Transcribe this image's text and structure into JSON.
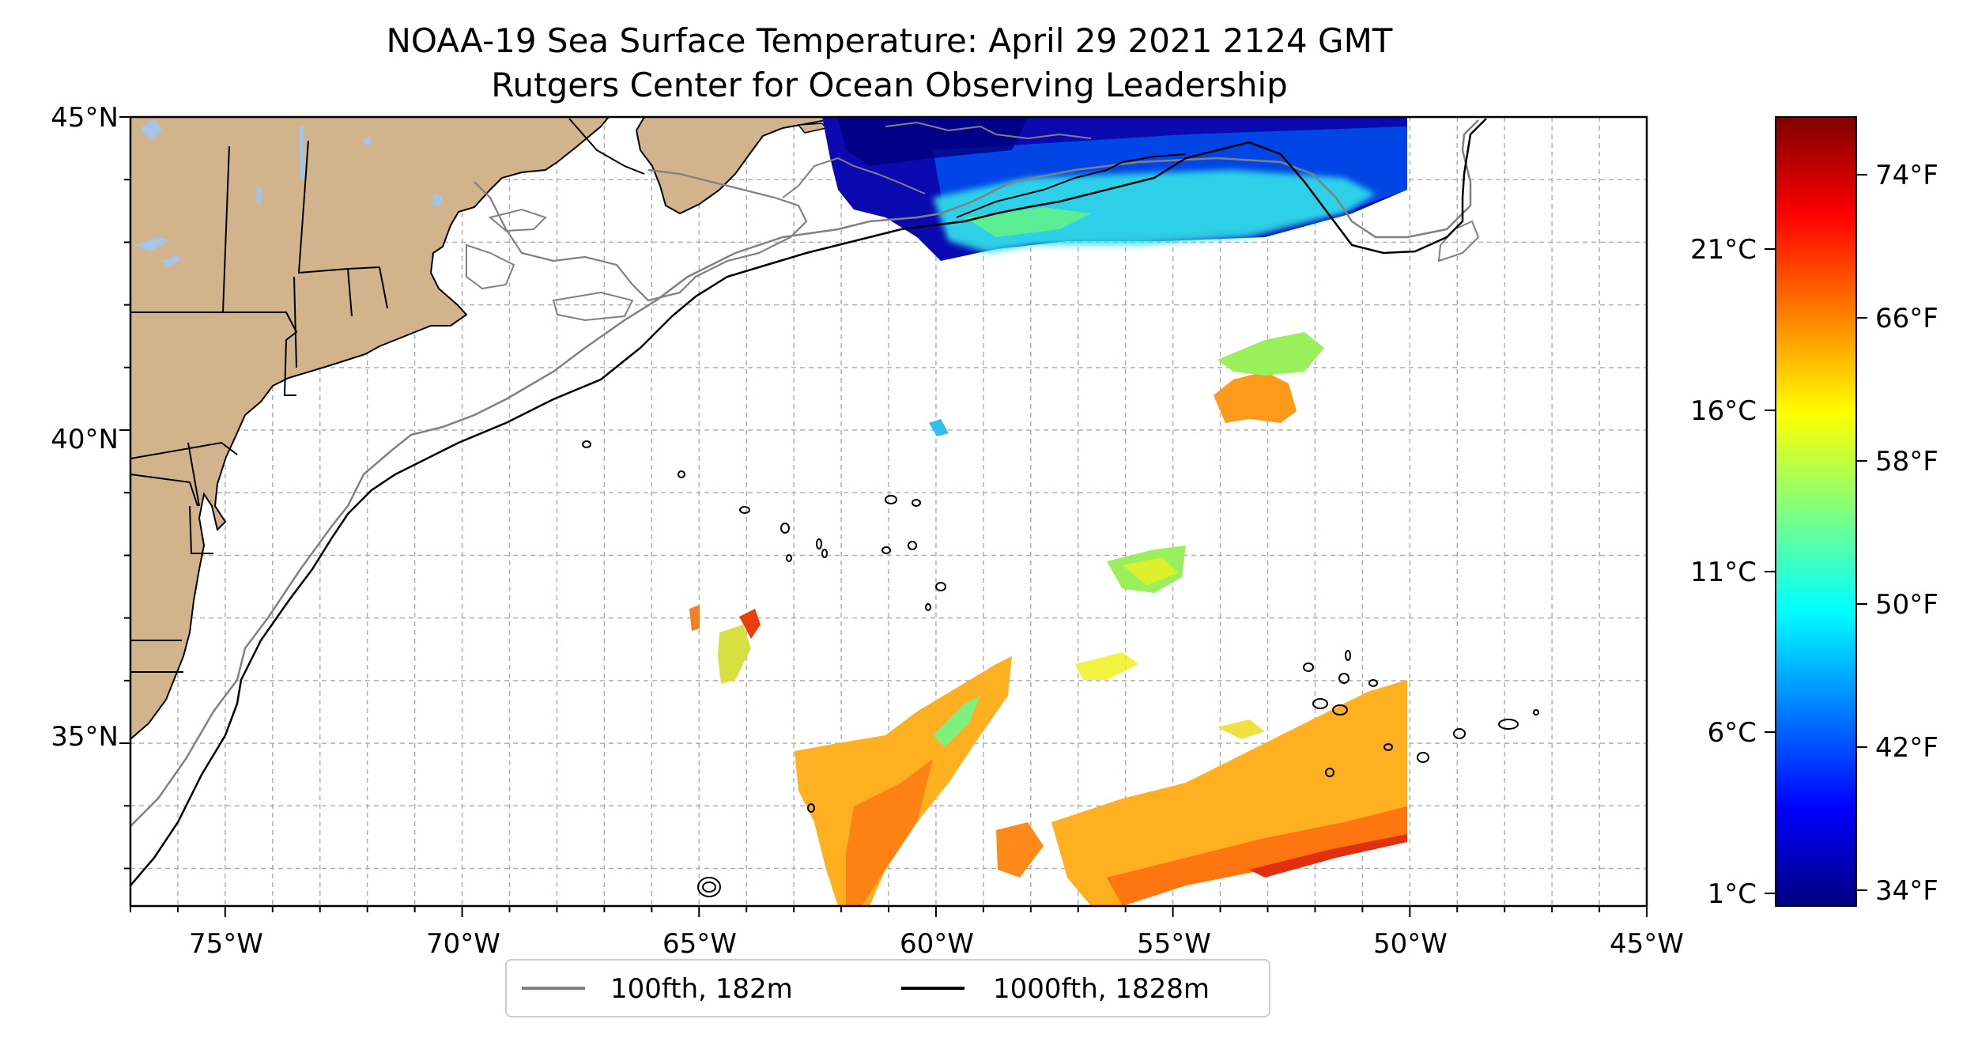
{
  "title": {
    "line1": "NOAA-19 Sea Surface Temperature: April 29 2021 2124 GMT",
    "line2": "Rutgers Center for Ocean Observing Leadership"
  },
  "map": {
    "lon_range": [
      -77,
      -45
    ],
    "lat_range": [
      32.4,
      45
    ],
    "lon_ticks": [
      "75°W",
      "70°W",
      "65°W",
      "60°W",
      "55°W",
      "50°W",
      "45°W"
    ],
    "lat_ticks": [
      "45°N",
      "40°N",
      "35°N"
    ],
    "grid": "dashed, 1 degree"
  },
  "legend": {
    "placement": "bottom-center",
    "items": [
      {
        "label": "100fth, 182m",
        "color": "#808080"
      },
      {
        "label": "1000fth, 1828m",
        "color": "#000000"
      }
    ]
  },
  "colorbar": {
    "colormap": "jet",
    "celsius_labels": [
      "21°C",
      "16°C",
      "11°C",
      "6°C",
      "1°C"
    ],
    "fahrenheit_labels": [
      "74°F",
      "66°F",
      "58°F",
      "50°F",
      "42°F",
      "34°F"
    ]
  },
  "colors": {
    "land": "#D2B48C",
    "lakes": "#A6C4E8",
    "contour_100fth": "#808080",
    "contour_1000fth": "#000000"
  }
}
